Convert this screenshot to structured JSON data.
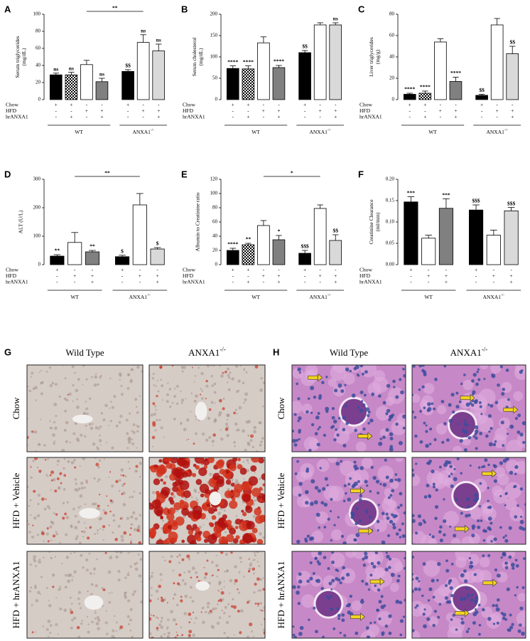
{
  "chart_data": [
    {
      "type": "bar",
      "panel": "A",
      "y_label": [
        "Serum triglycerides",
        "(mg/dL)"
      ],
      "ylim": [
        0,
        100
      ],
      "yticks": [
        0,
        20,
        40,
        60,
        80,
        100
      ],
      "values": [
        29,
        29,
        41,
        21,
        33,
        67,
        57
      ],
      "errors": [
        2,
        3,
        5,
        4,
        2,
        9,
        8
      ],
      "colors": [
        "#000000",
        "checker",
        "#ffffff",
        "#808080",
        "#000000",
        "#ffffff",
        "#d9d9d9"
      ],
      "annotations": [
        "ns",
        "ns",
        null,
        "ns",
        "$$",
        "ns",
        "ns"
      ],
      "bracket_label": "**",
      "conditions": [
        {
          "name": "Chow",
          "signs": [
            "+",
            "+",
            "-",
            "-",
            "+",
            "-",
            "-"
          ]
        },
        {
          "name": "HFD",
          "signs": [
            "-",
            "-",
            "+",
            "+",
            "-",
            "+",
            "+"
          ]
        },
        {
          "name": "hrANXA1",
          "signs": [
            "-",
            "+",
            "-",
            "+",
            "-",
            "-",
            "+"
          ]
        }
      ],
      "groups": [
        {
          "label": "WT"
        },
        {
          "label": "ANXA1",
          "sup": "-/-"
        }
      ]
    },
    {
      "type": "bar",
      "panel": "B",
      "y_label": [
        "Serum cholesterol",
        "(mg/dL)"
      ],
      "ylim": [
        0,
        200
      ],
      "yticks": [
        0,
        50,
        100,
        150,
        200
      ],
      "values": [
        73,
        72,
        133,
        75,
        110,
        175,
        175
      ],
      "errors": [
        6,
        7,
        14,
        5,
        5,
        5,
        5
      ],
      "colors": [
        "#000000",
        "checker",
        "#ffffff",
        "#808080",
        "#000000",
        "#ffffff",
        "#d9d9d9"
      ],
      "annotations": [
        "****",
        "****",
        null,
        "****",
        "$$",
        null,
        "ns"
      ],
      "conditions": [
        {
          "name": "Chow",
          "signs": [
            "+",
            "+",
            "-",
            "-",
            "+",
            "-",
            "-"
          ]
        },
        {
          "name": "HFD",
          "signs": [
            "-",
            "-",
            "+",
            "+",
            "-",
            "+",
            "+"
          ]
        },
        {
          "name": "hrANXA1",
          "signs": [
            "-",
            "+",
            "-",
            "+",
            "-",
            "-",
            "+"
          ]
        }
      ],
      "groups": [
        {
          "label": "WT"
        },
        {
          "label": "ANXA1",
          "sup": "-/-"
        }
      ]
    },
    {
      "type": "bar",
      "panel": "C",
      "y_label": [
        "Liver triglycerides",
        "(mg/g)"
      ],
      "ylim": [
        0,
        80
      ],
      "yticks": [
        0,
        20,
        40,
        60,
        80
      ],
      "values": [
        5,
        6,
        54,
        17,
        4,
        70,
        43
      ],
      "errors": [
        1,
        2,
        3,
        4,
        1,
        6,
        7
      ],
      "colors": [
        "#000000",
        "checker",
        "#ffffff",
        "#808080",
        "#000000",
        "#ffffff",
        "#d9d9d9"
      ],
      "annotations": [
        "****",
        "****",
        null,
        "****",
        "$$",
        null,
        "$$"
      ],
      "conditions": [
        {
          "name": "Chow",
          "signs": [
            "+",
            "+",
            "-",
            "-",
            "+",
            "-",
            "-"
          ]
        },
        {
          "name": "HFD",
          "signs": [
            "-",
            "-",
            "+",
            "+",
            "-",
            "+",
            "+"
          ]
        },
        {
          "name": "hrANXA1",
          "signs": [
            "-",
            "+",
            "-",
            "+",
            "-",
            "-",
            "+"
          ]
        }
      ],
      "groups": [
        {
          "label": "WT"
        },
        {
          "label": "ANXA1",
          "sup": "-/-"
        }
      ]
    },
    {
      "type": "bar",
      "panel": "D",
      "y_label": [
        "ALT (U/L)"
      ],
      "ylim": [
        0,
        300
      ],
      "yticks": [
        0,
        100,
        200,
        300
      ],
      "values": [
        30,
        78,
        45,
        28,
        210,
        55
      ],
      "errors": [
        5,
        35,
        5,
        5,
        40,
        5
      ],
      "colors": [
        "#000000",
        "#ffffff",
        "#808080",
        "#000000",
        "#ffffff",
        "#d9d9d9"
      ],
      "annotations": [
        "**",
        null,
        "**",
        "$",
        null,
        "$"
      ],
      "bracket_label": "**",
      "conditions": [
        {
          "name": "Chow",
          "signs": [
            "+",
            "-",
            "-",
            "+",
            "-",
            "-"
          ]
        },
        {
          "name": "HFD",
          "signs": [
            "-",
            "+",
            "+",
            "-",
            "+",
            "+"
          ]
        },
        {
          "name": "hrANXA1",
          "signs": [
            "-",
            "-",
            "+",
            "-",
            "-",
            "+"
          ]
        }
      ],
      "groups": [
        {
          "label": "WT"
        },
        {
          "label": "ANXA1",
          "sup": "-/-"
        }
      ]
    },
    {
      "type": "bar",
      "panel": "E",
      "y_label": [
        "Albumin to Creatinine ratio"
      ],
      "ylim": [
        0,
        120
      ],
      "yticks": [
        0,
        20,
        40,
        60,
        80,
        100,
        120
      ],
      "values": [
        20,
        28,
        55,
        35,
        16,
        79,
        34
      ],
      "errors": [
        3,
        2,
        7,
        6,
        4,
        5,
        8
      ],
      "colors": [
        "#000000",
        "checker",
        "#ffffff",
        "#808080",
        "#000000",
        "#ffffff",
        "#d9d9d9"
      ],
      "annotations": [
        "****",
        "**",
        null,
        "*",
        "$$$",
        null,
        "$$"
      ],
      "bracket_label": "*",
      "conditions": [
        {
          "name": "Chow",
          "signs": [
            "+",
            "+",
            "-",
            "-",
            "+",
            "-",
            "-"
          ]
        },
        {
          "name": "HFD",
          "signs": [
            "-",
            "-",
            "+",
            "+",
            "-",
            "+",
            "+"
          ]
        },
        {
          "name": "hrANXA1",
          "signs": [
            "-",
            "+",
            "-",
            "+",
            "-",
            "-",
            "+"
          ]
        }
      ],
      "groups": [
        {
          "label": "WT"
        },
        {
          "label": "ANXA1",
          "sup": "-/-"
        }
      ]
    },
    {
      "type": "bar",
      "panel": "F",
      "y_label": [
        "Creatinine Clearance",
        "(ml/min)"
      ],
      "ylim": [
        0,
        0.2
      ],
      "yticks": [
        {
          "value": 0,
          "label": "0.00"
        },
        {
          "value": 0.05,
          "label": "0.05"
        },
        {
          "value": 0.1,
          "label": "0.10"
        },
        {
          "value": 0.15,
          "label": "0.15"
        },
        {
          "value": 0.2,
          "label": "0.20"
        }
      ],
      "values": [
        0.147,
        0.062,
        0.132,
        0.128,
        0.069,
        0.126
      ],
      "errors": [
        0.012,
        0.007,
        0.022,
        0.012,
        0.012,
        0.008
      ],
      "colors": [
        "#000000",
        "#ffffff",
        "#808080",
        "#000000",
        "#ffffff",
        "#d9d9d9"
      ],
      "annotations": [
        "***",
        null,
        "***",
        "$$$",
        null,
        "$$$"
      ],
      "conditions": [
        {
          "name": "Chow",
          "signs": [
            "+",
            "-",
            "-",
            "+",
            "-",
            "-"
          ]
        },
        {
          "name": "HFD",
          "signs": [
            "-",
            "+",
            "+",
            "-",
            "+",
            "+"
          ]
        },
        {
          "name": "hrANXA1",
          "signs": [
            "-",
            "-",
            "+",
            "-",
            "-",
            "+"
          ]
        }
      ],
      "groups": [
        {
          "label": "WT"
        },
        {
          "label": "ANXA1",
          "sup": "-/-"
        }
      ]
    }
  ],
  "micrographs": [
    {
      "panel": "G",
      "columns": [
        {
          "label": "Wild Type"
        },
        {
          "label": "ANXA1",
          "sup": "-/-"
        }
      ],
      "rows": [
        "Chow",
        "HFD + Vehicle",
        "HFD + hrANXA1"
      ]
    },
    {
      "panel": "H",
      "columns": [
        {
          "label": "Wild Type"
        },
        {
          "label": "ANXA1",
          "sup": "-/-"
        }
      ],
      "rows": [
        "Chow",
        "HFD + Vehicle",
        "HFD + hrANXA1"
      ]
    }
  ]
}
